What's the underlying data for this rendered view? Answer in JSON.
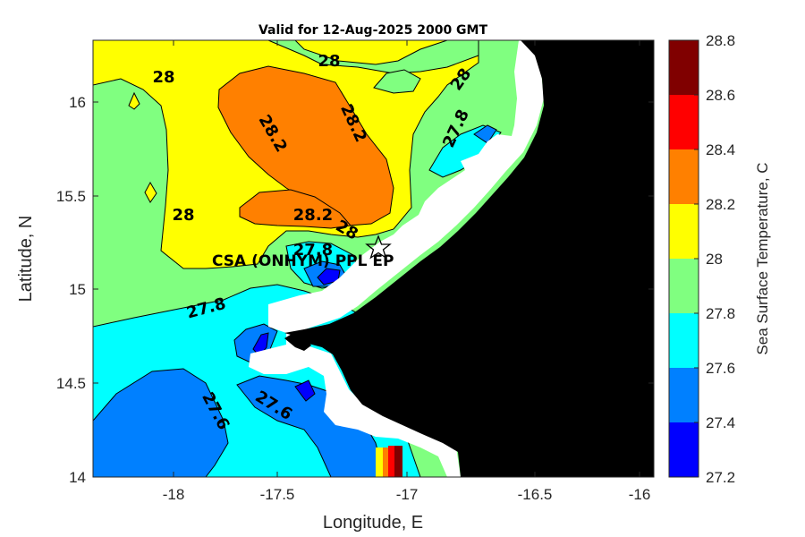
{
  "title": "Valid for 12-Aug-2025 2000 GMT",
  "x_axis": {
    "label": "Longitude, E",
    "ticks": [
      "-18",
      "-17.5",
      "-17",
      "-16.5",
      "-16"
    ]
  },
  "y_axis": {
    "label": "Latitude, N",
    "ticks": [
      "14",
      "14.5",
      "15",
      "15.5",
      "16"
    ]
  },
  "colorbar": {
    "label": "Sea Surface Temperature, C",
    "ticks": [
      "27.2",
      "27.4",
      "27.6",
      "27.8",
      "28",
      "28.2",
      "28.4",
      "28.6",
      "28.8"
    ],
    "levels": [
      {
        "range": [
          27.2,
          27.4
        ],
        "color": "#0000ff"
      },
      {
        "range": [
          27.4,
          27.6
        ],
        "color": "#0080ff"
      },
      {
        "range": [
          27.6,
          27.8
        ],
        "color": "#00ffff"
      },
      {
        "range": [
          27.8,
          28.0
        ],
        "color": "#80ff80"
      },
      {
        "range": [
          28.0,
          28.2
        ],
        "color": "#ffff00"
      },
      {
        "range": [
          28.2,
          28.4
        ],
        "color": "#ff8000"
      },
      {
        "range": [
          28.4,
          28.6
        ],
        "color": "#ff0000"
      },
      {
        "range": [
          28.6,
          28.8
        ],
        "color": "#800000"
      }
    ]
  },
  "contour_labels": [
    {
      "text": "28"
    },
    {
      "text": "28"
    },
    {
      "text": "28"
    },
    {
      "text": "28.2"
    },
    {
      "text": "28.2"
    },
    {
      "text": "27.8"
    },
    {
      "text": "28"
    },
    {
      "text": "28.2"
    },
    {
      "text": "28"
    },
    {
      "text": "27.8"
    },
    {
      "text": "27.8"
    },
    {
      "text": "27.6"
    },
    {
      "text": "27.6"
    }
  ],
  "site": {
    "label": "CSA (ONHYM) PPL EP",
    "marker": "star-icon"
  },
  "colors": {
    "land": "#000000",
    "no_data": "#ffffff",
    "frame": "#262626"
  }
}
